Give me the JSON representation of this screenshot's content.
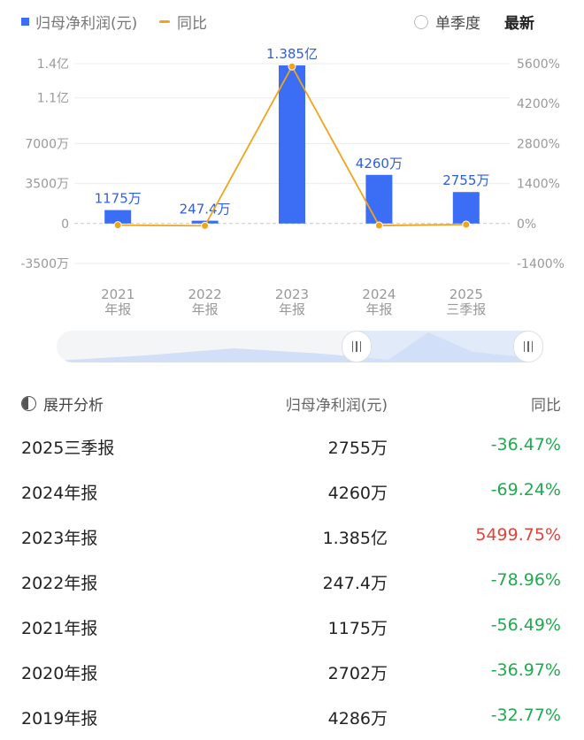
{
  "legend": {
    "bar_label": "归母净利润(元)",
    "line_label": "同比",
    "bar_color": "#3b6ef5",
    "line_color": "#f0a41e"
  },
  "controls": {
    "single_quarter_label": "单季度",
    "latest_label": "最新"
  },
  "chart_data": {
    "type": "bar",
    "categories": [
      [
        "2021",
        "年报"
      ],
      [
        "2022",
        "年报"
      ],
      [
        "2023",
        "年报"
      ],
      [
        "2024",
        "年报"
      ],
      [
        "2025",
        "三季报"
      ]
    ],
    "series": [
      {
        "name": "归母净利润(元)",
        "type": "bar",
        "axis": "left",
        "values": [
          11750000,
          2474000,
          138500000,
          42600000,
          27550000
        ],
        "labels": [
          "1175万",
          "247.4万",
          "1.385亿",
          "4260万",
          "2755万"
        ]
      },
      {
        "name": "同比",
        "type": "line",
        "axis": "right",
        "values": [
          -56.49,
          -78.96,
          5499.75,
          -69.24,
          -36.47
        ]
      }
    ],
    "y_left": {
      "ticks": [
        140000000,
        110000000,
        70000000,
        35000000,
        0,
        -35000000
      ],
      "tick_labels": [
        "1.4亿",
        "1.1亿",
        "7000万",
        "3500万",
        "0",
        "-3500万"
      ],
      "range": [
        -35000000,
        140000000
      ]
    },
    "y_right": {
      "ticks": [
        5600,
        4200,
        2800,
        1400,
        0,
        -1400
      ],
      "tick_labels": [
        "5600%",
        "4200%",
        "2800%",
        "1400%",
        "0%",
        "-1400%"
      ],
      "range": [
        -1400,
        5600
      ]
    },
    "grid": true
  },
  "table": {
    "header": {
      "expand_label": "展开分析",
      "value_col": "归母净利润(元)",
      "yoy_col": "同比"
    },
    "rows": [
      {
        "period": "2025三季报",
        "value": "2755万",
        "yoy": "-36.47%",
        "dir": "neg"
      },
      {
        "period": "2024年报",
        "value": "4260万",
        "yoy": "-69.24%",
        "dir": "neg"
      },
      {
        "period": "2023年报",
        "value": "1.385亿",
        "yoy": "5499.75%",
        "dir": "pos"
      },
      {
        "period": "2022年报",
        "value": "247.4万",
        "yoy": "-78.96%",
        "dir": "neg"
      },
      {
        "period": "2021年报",
        "value": "1175万",
        "yoy": "-56.49%",
        "dir": "neg"
      },
      {
        "period": "2020年报",
        "value": "2702万",
        "yoy": "-36.97%",
        "dir": "neg"
      },
      {
        "period": "2019年报",
        "value": "4286万",
        "yoy": "-32.77%",
        "dir": "neg"
      }
    ]
  }
}
